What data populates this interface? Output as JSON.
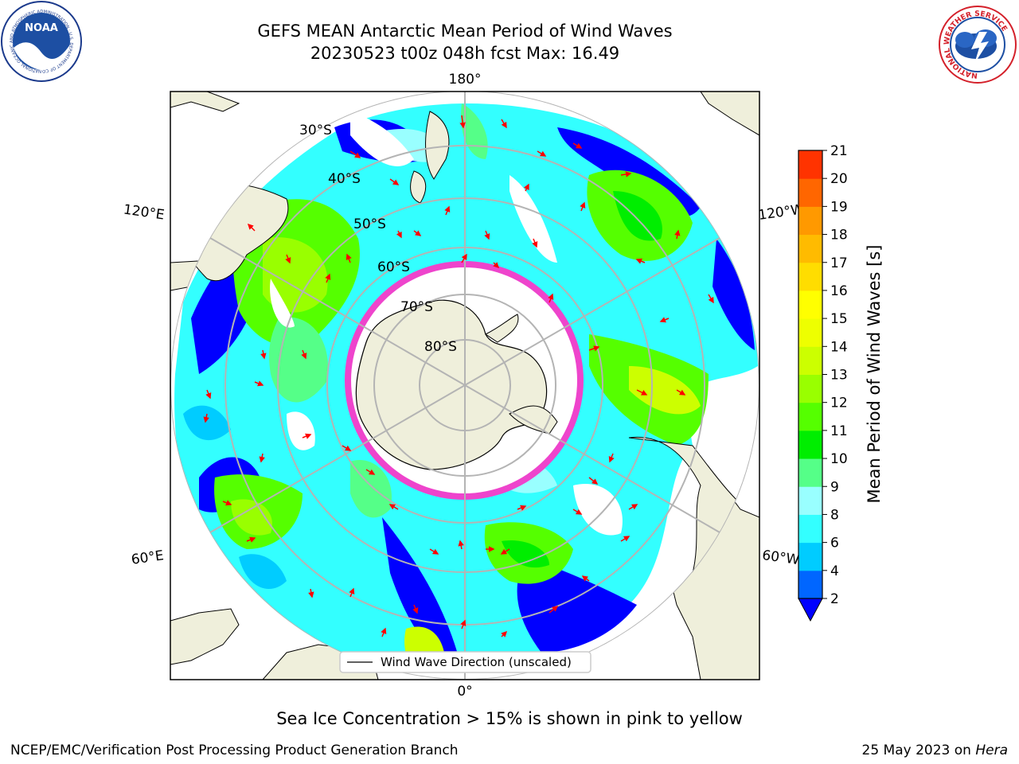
{
  "title": {
    "line1": "GEFS MEAN Antarctic Mean Period of Wind Waves",
    "line2": "20230523 t00z 048h fcst   Max: 16.49"
  },
  "logos": {
    "noaa_text": "NOAA",
    "noaa_ring": "NATIONAL OCEANIC AND ATMOSPHERIC ADMINISTRATION · U.S. DEPARTMENT OF COMMERCE",
    "nws_ring": "NATIONAL WEATHER SERVICE"
  },
  "map": {
    "longitude_labels": {
      "top": "180°",
      "bottom": "0°",
      "left_upper": "120°E",
      "right_upper": "120°W",
      "left_lower": "60°E",
      "right_lower": "60°W"
    },
    "latitude_labels": [
      "30°S",
      "40°S",
      "50°S",
      "60°S",
      "70°S",
      "80°S"
    ],
    "legend_label": "Wind Wave Direction (unscaled)"
  },
  "colorbar": {
    "label": "Mean Period of Wind Waves [s]",
    "ticks": [
      "2",
      "4",
      "6",
      "8",
      "9",
      "10",
      "11",
      "12",
      "13",
      "14",
      "15",
      "16",
      "17",
      "18",
      "19",
      "20",
      "21"
    ],
    "colors": [
      "#0066ff",
      "#00ccff",
      "#33ffff",
      "#99ffff",
      "#55ff88",
      "#00ee00",
      "#55ff00",
      "#99ff00",
      "#ccff00",
      "#eeff00",
      "#ffff00",
      "#ffdd00",
      "#ffbb00",
      "#ff9900",
      "#ff6600",
      "#ff3300"
    ],
    "extend_color": "#0000ff"
  },
  "caption": "Sea Ice Concentration > 15% is shown in pink to yellow",
  "footer": {
    "left": "NCEP/EMC/Verification Post Processing Product Generation Branch",
    "right_prefix": "25 May 2023 on ",
    "right_italic": "Hera"
  }
}
